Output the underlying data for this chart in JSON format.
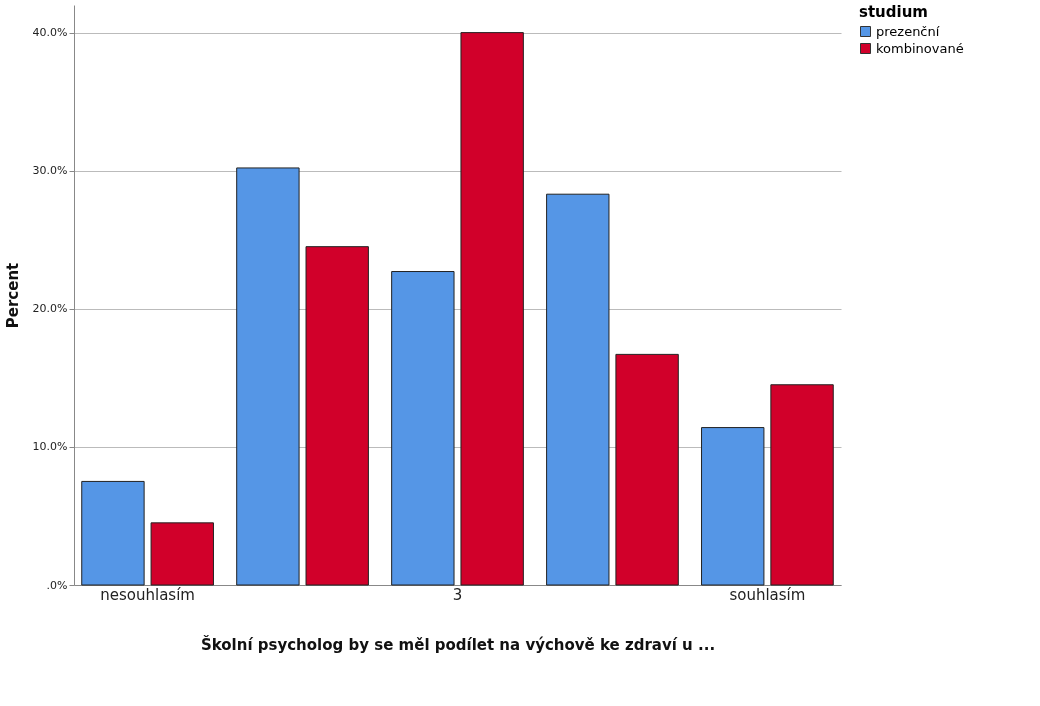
{
  "chart_data": {
    "type": "bar",
    "xlabel": "Školní psycholog by se měl podílet na výchově ke zdraví u ...",
    "ylabel": "Percent",
    "legend_title": "studium",
    "categories": [
      "nesouhlasím",
      null,
      "3",
      null,
      "souhlasím"
    ],
    "series": [
      {
        "name": "prezenční",
        "color": "#5596e6",
        "values": [
          7.5,
          30.2,
          22.7,
          28.3,
          11.4
        ]
      },
      {
        "name": "kombinované",
        "color": "#d1002a",
        "values": [
          4.5,
          24.5,
          40.0,
          16.7,
          14.5
        ]
      }
    ],
    "ylim": [
      0,
      42
    ],
    "yticks": [
      {
        "value": 0,
        "label": ".0%"
      },
      {
        "value": 10,
        "label": "10.0%"
      },
      {
        "value": 20,
        "label": "20.0%"
      },
      {
        "value": 30,
        "label": "30.0%"
      },
      {
        "value": 40,
        "label": "40.0%"
      }
    ],
    "grid": "y",
    "legend": "top right"
  }
}
